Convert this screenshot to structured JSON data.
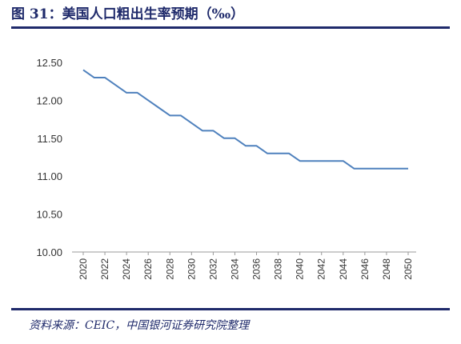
{
  "title": "图 31：美国人口粗出生率预期（‰）",
  "source": "资料来源：CEIC，中国银河证券研究院整理",
  "colors": {
    "line": "#4f81bd",
    "rule": "#1f2a6b",
    "axis": "#999999"
  },
  "chart_data": {
    "type": "line",
    "title": "",
    "xlabel": "",
    "ylabel": "",
    "ylim": [
      10.0,
      12.5
    ],
    "yticks": [
      "10.00",
      "10.50",
      "11.00",
      "11.50",
      "12.00",
      "12.50"
    ],
    "x": [
      2020,
      2021,
      2022,
      2023,
      2024,
      2025,
      2026,
      2027,
      2028,
      2029,
      2030,
      2031,
      2032,
      2033,
      2034,
      2035,
      2036,
      2037,
      2038,
      2039,
      2040,
      2041,
      2042,
      2043,
      2044,
      2045,
      2046,
      2047,
      2048,
      2049,
      2050
    ],
    "x_tick_labels": [
      "2020",
      "2022",
      "2024",
      "2026",
      "2028",
      "2030",
      "2032",
      "2034",
      "2036",
      "2038",
      "2040",
      "2042",
      "2044",
      "2046",
      "2048",
      "2050"
    ],
    "series": [
      {
        "values": [
          12.4,
          12.3,
          12.3,
          12.2,
          12.1,
          12.1,
          12.0,
          11.9,
          11.8,
          11.8,
          11.7,
          11.6,
          11.6,
          11.5,
          11.5,
          11.4,
          11.4,
          11.3,
          11.3,
          11.3,
          11.2,
          11.2,
          11.2,
          11.2,
          11.2,
          11.1,
          11.1,
          11.1,
          11.1,
          11.1,
          11.1
        ]
      }
    ],
    "grid": false,
    "legend": "none"
  }
}
